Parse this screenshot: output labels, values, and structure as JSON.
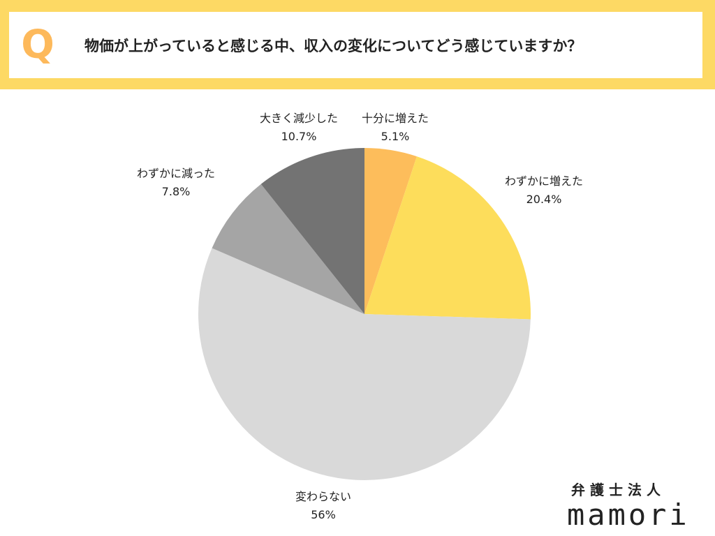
{
  "header": {
    "q_mark": "Q",
    "question": "物価が上がっていると感じる中、収入の変化についてどう感じていますか？"
  },
  "brand": {
    "top": "弁護士法人",
    "name": "mamori"
  },
  "colors": {
    "banner": "#fdd964",
    "q_mark": "#fdb95b"
  },
  "chart_data": {
    "type": "pie",
    "start": "12 o'clock",
    "direction": "clockwise",
    "slices": [
      {
        "label": "十分に増えた",
        "value": 5.1,
        "display": "5.1%",
        "color": "#fdbd5b"
      },
      {
        "label": "わずかに増えた",
        "value": 20.4,
        "display": "20.4%",
        "color": "#fddd5b"
      },
      {
        "label": "変わらない",
        "value": 56,
        "display": "56%",
        "color": "#d9d9d9"
      },
      {
        "label": "わずかに減った",
        "value": 7.8,
        "display": "7.8%",
        "color": "#a5a5a5"
      },
      {
        "label": "大きく減少した",
        "value": 10.7,
        "display": "10.7%",
        "color": "#737373"
      }
    ]
  }
}
